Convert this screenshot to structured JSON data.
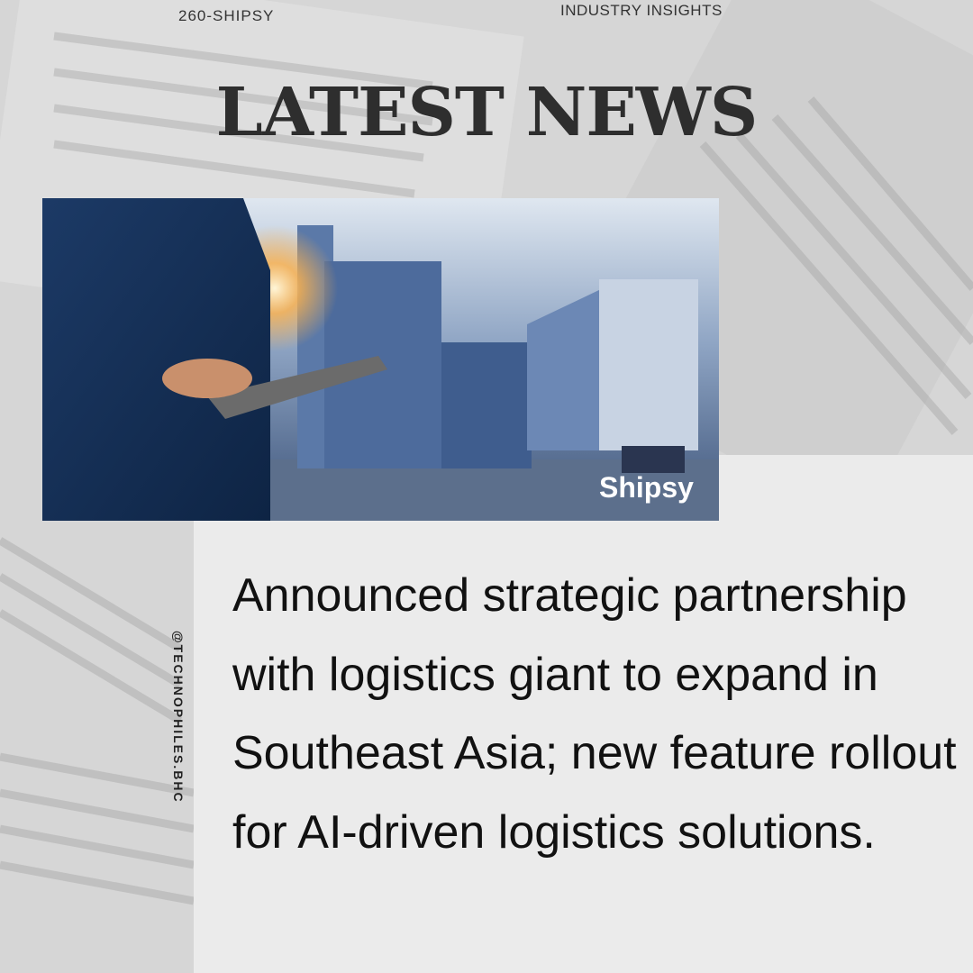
{
  "header": {
    "account": "260-SHIPSY",
    "category": "INDUSTRY INSIGHTS",
    "title": "LATEST NEWS"
  },
  "image": {
    "logo": "Shipsy"
  },
  "handle": "@TECHNOPHILES.BHC",
  "body": "Announced strategic partnership with logistics giant to expand in Southeast Asia; new feature rollout for AI-driven logistics solutions."
}
